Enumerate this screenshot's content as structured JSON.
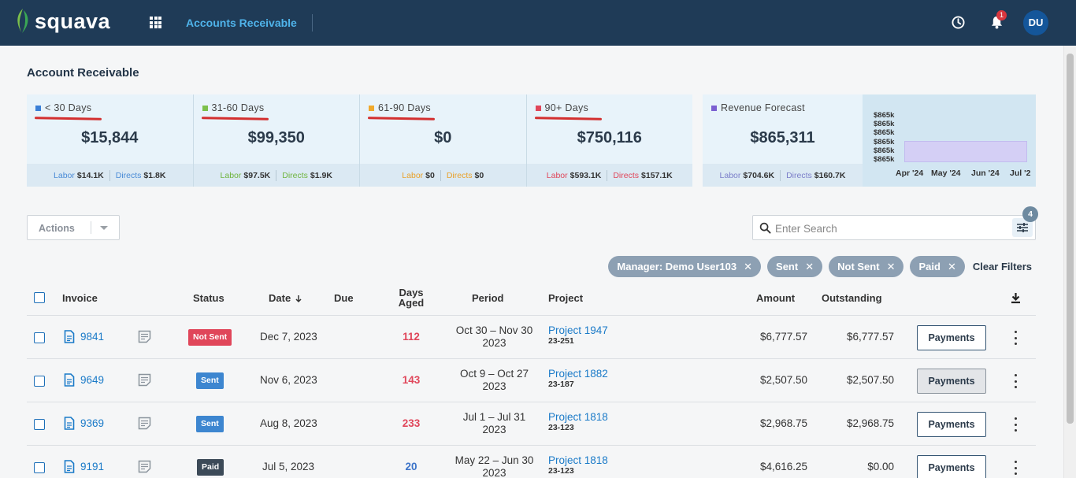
{
  "header": {
    "logo_text": "squava",
    "app_title": "Accounts Receivable",
    "notification_count": "1",
    "avatar_initials": "DU"
  },
  "page": {
    "title": "Account Receivable"
  },
  "aging_cards": [
    {
      "label": "< 30 Days",
      "color": "#3a7fd6",
      "value": "$15,844",
      "labor_label": "Labor",
      "labor": "$14.1K",
      "directs_label": "Directs",
      "directs": "$1.8K",
      "foot_color": "#4a8bd6"
    },
    {
      "label": "31-60 Days",
      "color": "#7cc04b",
      "value": "$99,350",
      "labor_label": "Labor",
      "labor": "$97.5K",
      "directs_label": "Directs",
      "directs": "$1.9K",
      "foot_color": "#6fb43e"
    },
    {
      "label": "61-90 Days",
      "color": "#f0a92c",
      "value": "$0",
      "labor_label": "Labor",
      "labor": "$0",
      "directs_label": "Directs",
      "directs": "$0",
      "foot_color": "#e9a12a"
    },
    {
      "label": "90+ Days",
      "color": "#e0465a",
      "value": "$750,116",
      "labor_label": "Labor",
      "labor": "$593.1K",
      "directs_label": "Directs",
      "directs": "$157.1K",
      "foot_color": "#e0465a"
    }
  ],
  "forecast": {
    "label": "Revenue Forecast",
    "color": "#7b5fd1",
    "value": "$865,311",
    "labor_label": "Labor",
    "labor": "$704.6K",
    "directs_label": "Directs",
    "directs": "$160.7K",
    "foot_color": "#7b7ec9",
    "y_ticks": [
      "$865k",
      "$865k",
      "$865k",
      "$865k",
      "$865k",
      "$865k"
    ],
    "x_ticks": [
      "Apr '24",
      "May '24",
      "Jun '24",
      "Jul '2"
    ]
  },
  "toolbar": {
    "actions_label": "Actions",
    "search_placeholder": "Enter Search",
    "filter_count": "4"
  },
  "filters": [
    {
      "label": "Manager: Demo User103"
    },
    {
      "label": "Sent"
    },
    {
      "label": "Not Sent"
    },
    {
      "label": "Paid"
    }
  ],
  "clear_filters_label": "Clear Filters",
  "table": {
    "headers": {
      "invoice": "Invoice",
      "status": "Status",
      "date": "Date",
      "due": "Due",
      "days_aged_1": "Days",
      "days_aged_2": "Aged",
      "period": "Period",
      "project": "Project",
      "amount": "Amount",
      "outstanding": "Outstanding"
    },
    "rows": [
      {
        "invoice": "9841",
        "status": "Not Sent",
        "status_color": "#e0465a",
        "date": "Dec 7, 2023",
        "days": "112",
        "days_color": "#e0465a",
        "period_1": "Oct 30 – Nov 30",
        "period_2": "2023",
        "project": "Project 1947",
        "project_code": "23-251",
        "amount": "$6,777.57",
        "outstanding": "$6,777.57",
        "payments_label": "Payments"
      },
      {
        "invoice": "9649",
        "status": "Sent",
        "status_color": "#3d86d0",
        "date": "Nov 6, 2023",
        "days": "143",
        "days_color": "#e0465a",
        "period_1": "Oct 9 – Oct 27",
        "period_2": "2023",
        "project": "Project 1882",
        "project_code": "23-187",
        "amount": "$2,507.50",
        "outstanding": "$2,507.50",
        "payments_label": "Payments"
      },
      {
        "invoice": "9369",
        "status": "Sent",
        "status_color": "#3d86d0",
        "date": "Aug 8, 2023",
        "days": "233",
        "days_color": "#e0465a",
        "period_1": "Jul 1 – Jul 31",
        "period_2": "2023",
        "project": "Project 1818",
        "project_code": "23-123",
        "amount": "$2,968.75",
        "outstanding": "$2,968.75",
        "payments_label": "Payments"
      },
      {
        "invoice": "9191",
        "status": "Paid",
        "status_color": "#3c4a58",
        "date": "Jul 5, 2023",
        "days": "20",
        "days_color": "#3d74c9",
        "period_1": "May 22 – Jun 30",
        "period_2": "2023",
        "project": "Project 1818",
        "project_code": "23-123",
        "amount": "$4,616.25",
        "outstanding": "$0.00",
        "payments_label": "Payments"
      }
    ]
  }
}
